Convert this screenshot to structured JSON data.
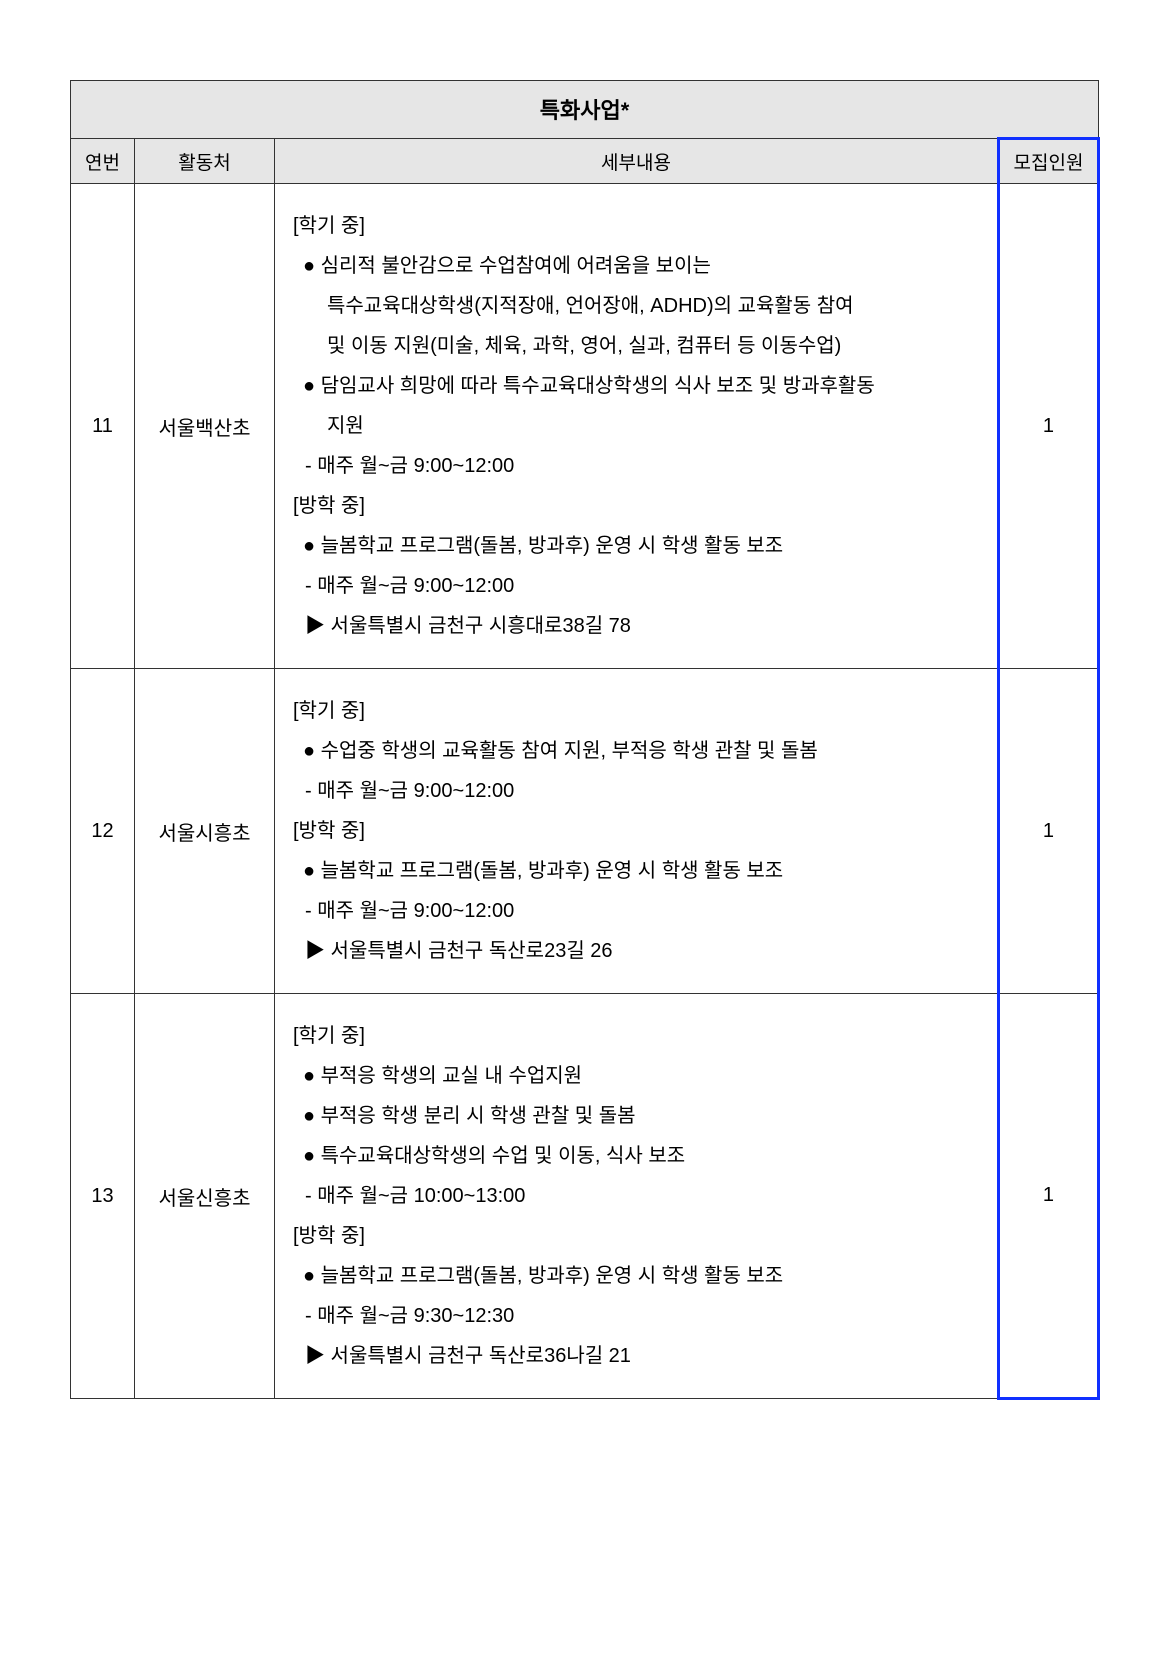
{
  "title": "특화사업*",
  "columns": [
    "연번",
    "활동처",
    "세부내용",
    "모집인원"
  ],
  "rows": [
    {
      "no": "11",
      "location": "서울백산초",
      "count": "1",
      "lines": [
        {
          "cls": "section",
          "text": "[학기 중]"
        },
        {
          "cls": "bullet",
          "text": "● 심리적 불안감으로 수업참여에 어려움을 보이는"
        },
        {
          "cls": "cont",
          "text": "특수교육대상학생(지적장애, 언어장애, ADHD)의 교육활동 참여"
        },
        {
          "cls": "cont",
          "text": "및 이동 지원(미술, 체육, 과학, 영어, 실과, 컴퓨터 등 이동수업)"
        },
        {
          "cls": "bullet",
          "text": "● 담임교사 희망에 따라 특수교육대상학생의 식사 보조 및 방과후활동"
        },
        {
          "cls": "cont",
          "text": "지원"
        },
        {
          "cls": "dash",
          "text": "- 매주 월~금 9:00~12:00"
        },
        {
          "cls": "section",
          "text": "[방학 중]"
        },
        {
          "cls": "bullet",
          "text": "● 늘봄학교 프로그램(돌봄, 방과후) 운영 시 학생 활동 보조"
        },
        {
          "cls": "dash",
          "text": "- 매주 월~금 9:00~12:00"
        },
        {
          "cls": "arrow",
          "text": "▶ 서울특별시 금천구 시흥대로38길 78"
        }
      ]
    },
    {
      "no": "12",
      "location": "서울시흥초",
      "count": "1",
      "lines": [
        {
          "cls": "section",
          "text": "[학기 중]"
        },
        {
          "cls": "bullet",
          "text": "● 수업중 학생의 교육활동 참여 지원, 부적응 학생 관찰 및 돌봄"
        },
        {
          "cls": "dash",
          "text": "- 매주 월~금 9:00~12:00"
        },
        {
          "cls": "section",
          "text": "[방학 중]"
        },
        {
          "cls": "bullet",
          "text": "● 늘봄학교 프로그램(돌봄, 방과후) 운영 시 학생 활동 보조"
        },
        {
          "cls": "dash",
          "text": "- 매주 월~금 9:00~12:00"
        },
        {
          "cls": "arrow",
          "text": "▶ 서울특별시 금천구 독산로23길 26"
        }
      ]
    },
    {
      "no": "13",
      "location": "서울신흥초",
      "count": "1",
      "lines": [
        {
          "cls": "section",
          "text": "[학기 중]"
        },
        {
          "cls": "bullet",
          "text": "● 부적응 학생의 교실 내 수업지원"
        },
        {
          "cls": "bullet",
          "text": "● 부적응 학생 분리 시 학생 관찰 및 돌봄"
        },
        {
          "cls": "bullet",
          "text": "● 특수교육대상학생의 수업 및 이동, 식사 보조"
        },
        {
          "cls": "dash",
          "text": "- 매주 월~금 10:00~13:00"
        },
        {
          "cls": "section",
          "text": "[방학 중]"
        },
        {
          "cls": "bullet",
          "text": "● 늘봄학교 프로그램(돌봄, 방과후) 운영 시 학생 활동 보조"
        },
        {
          "cls": "dash",
          "text": "- 매주 월~금 9:30~12:30"
        },
        {
          "cls": "arrow",
          "text": "▶ 서울특별시 금천구 독산로36나길 21"
        }
      ]
    }
  ]
}
